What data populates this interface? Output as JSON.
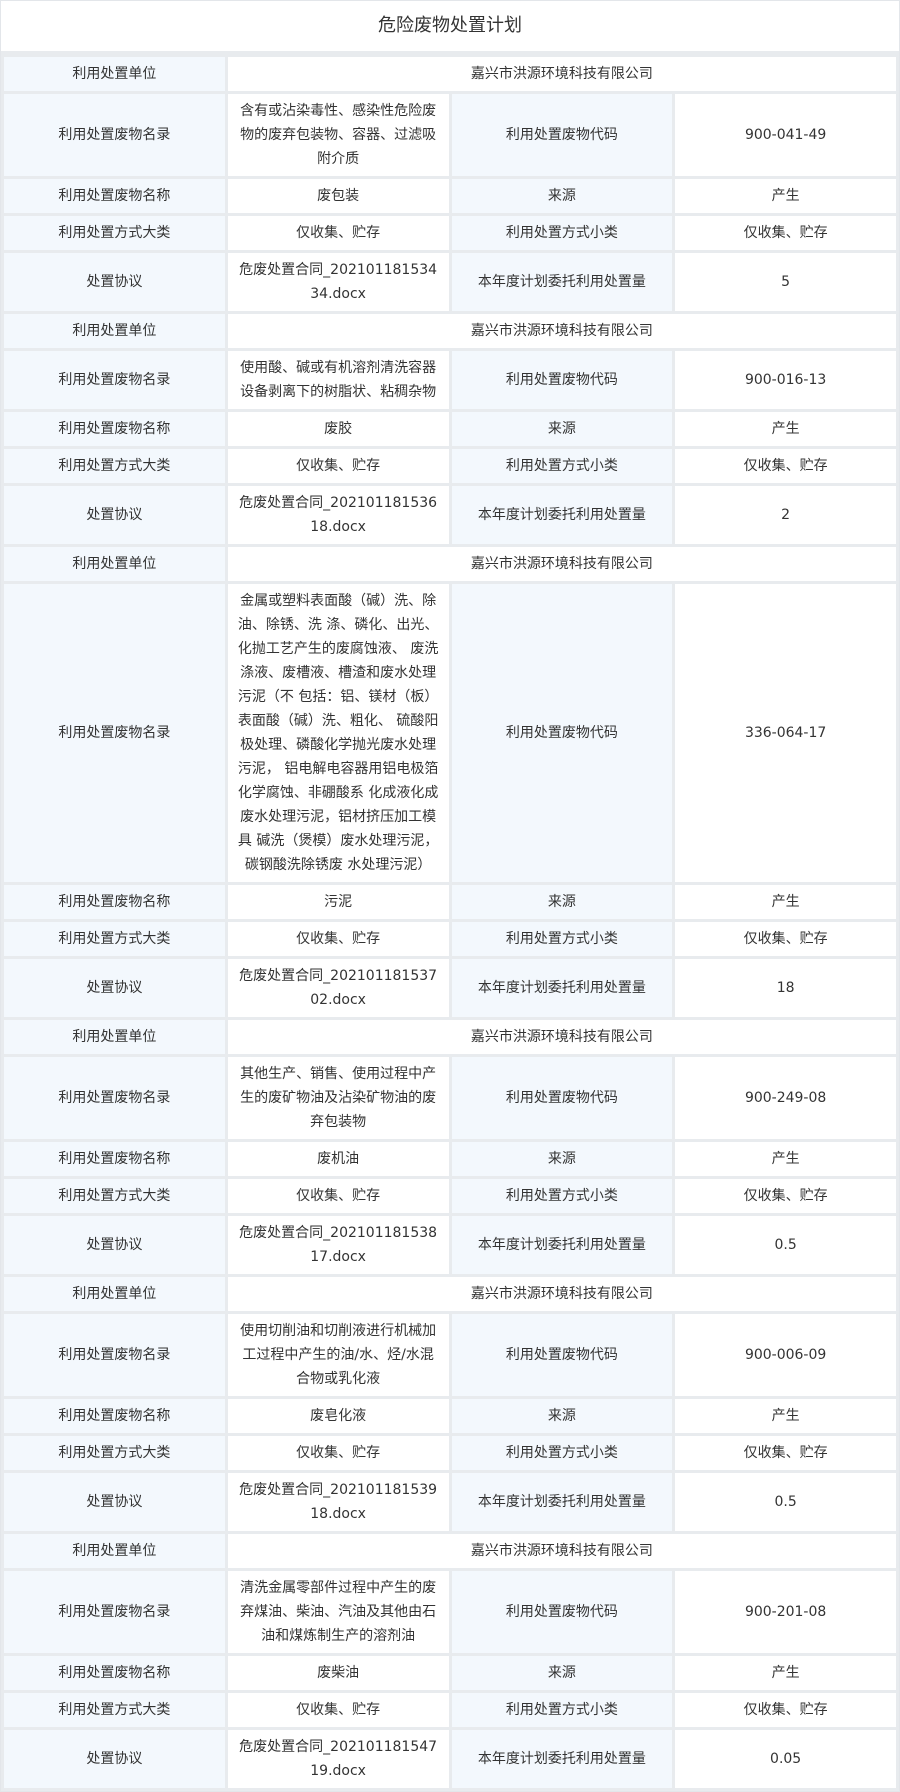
{
  "title": "危险废物处置计划",
  "labels": {
    "unit": "利用处置单位",
    "catalog": "利用处置废物名录",
    "code": "利用处置废物代码",
    "name": "利用处置废物名称",
    "source": "来源",
    "method_major": "利用处置方式大类",
    "method_minor": "利用处置方式小类",
    "agreement": "处置协议",
    "quantity": "本年度计划委托利用处置量"
  },
  "records": [
    {
      "unit": "嘉兴市洪源环境科技有限公司",
      "catalog": "含有或沾染毒性、感染性危险废物的废弃包装物、容器、过滤吸附介质",
      "code": "900-041-49",
      "name": "废包装",
      "source": "产生",
      "method_major": "仅收集、贮存",
      "method_minor": "仅收集、贮存",
      "agreement": "危废处置合同_20210118153434.docx",
      "quantity": "5"
    },
    {
      "unit": "嘉兴市洪源环境科技有限公司",
      "catalog": "使用酸、碱或有机溶剂清洗容器设备剥离下的树脂状、粘稠杂物",
      "code": "900-016-13",
      "name": "废胶",
      "source": "产生",
      "method_major": "仅收集、贮存",
      "method_minor": "仅收集、贮存",
      "agreement": "危废处置合同_20210118153618.docx",
      "quantity": "2"
    },
    {
      "unit": "嘉兴市洪源环境科技有限公司",
      "catalog": "金属或塑料表面酸（碱）洗、除油、除锈、洗 涤、磷化、出光、化抛工艺产生的废腐蚀液、 废洗涤液、废槽液、槽渣和废水处理污泥（不 包括：铝、镁材（板）表面酸（碱）洗、粗化、 硫酸阳极处理、磷酸化学抛光废水处理污泥， 铝电解电容器用铝电极箔化学腐蚀、非硼酸系 化成液化成废水处理污泥，铝材挤压加工模具 碱洗（煲模）废水处理污泥，碳钢酸洗除锈废 水处理污泥）",
      "code": "336-064-17",
      "name": "污泥",
      "source": "产生",
      "method_major": "仅收集、贮存",
      "method_minor": "仅收集、贮存",
      "agreement": "危废处置合同_20210118153702.docx",
      "quantity": "18"
    },
    {
      "unit": "嘉兴市洪源环境科技有限公司",
      "catalog": "其他生产、销售、使用过程中产生的废矿物油及沾染矿物油的废弃包装物",
      "code": "900-249-08",
      "name": "废机油",
      "source": "产生",
      "method_major": "仅收集、贮存",
      "method_minor": "仅收集、贮存",
      "agreement": "危废处置合同_20210118153817.docx",
      "quantity": "0.5"
    },
    {
      "unit": "嘉兴市洪源环境科技有限公司",
      "catalog": "使用切削油和切削液进行机械加工过程中产生的油/水、烃/水混合物或乳化液",
      "code": "900-006-09",
      "name": "废皂化液",
      "source": "产生",
      "method_major": "仅收集、贮存",
      "method_minor": "仅收集、贮存",
      "agreement": "危废处置合同_20210118153918.docx",
      "quantity": "0.5"
    },
    {
      "unit": "嘉兴市洪源环境科技有限公司",
      "catalog": "清洗金属零部件过程中产生的废弃煤油、柴油、汽油及其他由石油和煤炼制生产的溶剂油",
      "code": "900-201-08",
      "name": "废柴油",
      "source": "产生",
      "method_major": "仅收集、贮存",
      "method_minor": "仅收集、贮存",
      "agreement": "危废处置合同_20210118154719.docx",
      "quantity": "0.05"
    }
  ]
}
